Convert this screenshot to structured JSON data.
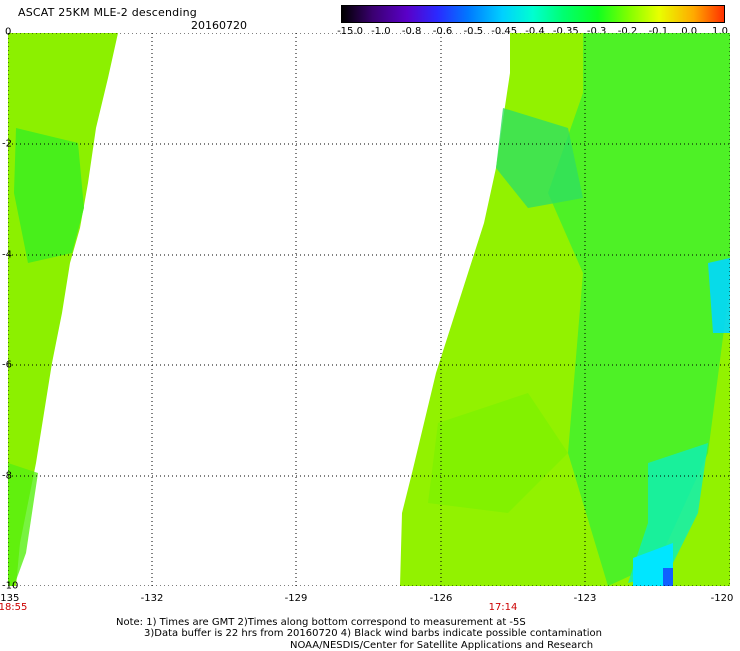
{
  "header": {
    "title": "ASCAT 25KM MLE-2 descending",
    "date": "20160720"
  },
  "colorbar": {
    "labels": [
      "-15.0",
      "-1.0",
      "-0.8",
      "-0.6",
      "-0.5",
      "-0.45",
      "-0.4",
      "-0.35",
      "-0.3",
      "-0.2",
      "-0.1",
      "0.0",
      "1.0"
    ],
    "colors": [
      "#000000",
      "#3a0070",
      "#5a00c8",
      "#2a2aff",
      "#0078ff",
      "#00d0ff",
      "#00ffd0",
      "#00ff70",
      "#10ff20",
      "#80ff00",
      "#e8ff00",
      "#ffaa00",
      "#ff3000"
    ]
  },
  "axes": {
    "x_ticks": [
      "-135",
      "-132",
      "-129",
      "-126",
      "-123",
      "-120"
    ],
    "y_ticks": [
      "0",
      "-2",
      "-4",
      "-6",
      "-8",
      "-10"
    ]
  },
  "times": {
    "left": "18:55",
    "middle": "17:14"
  },
  "notes": {
    "line1": "Note: 1) Times are GMT 2)Times along bottom correspond to measurement at -5S",
    "line2": "3)Data buffer is 22 hrs from 20160720 4) Black wind barbs indicate possible contamination",
    "credit": "NOAA/NESDIS/Center for Satellite Applications and Research"
  }
}
